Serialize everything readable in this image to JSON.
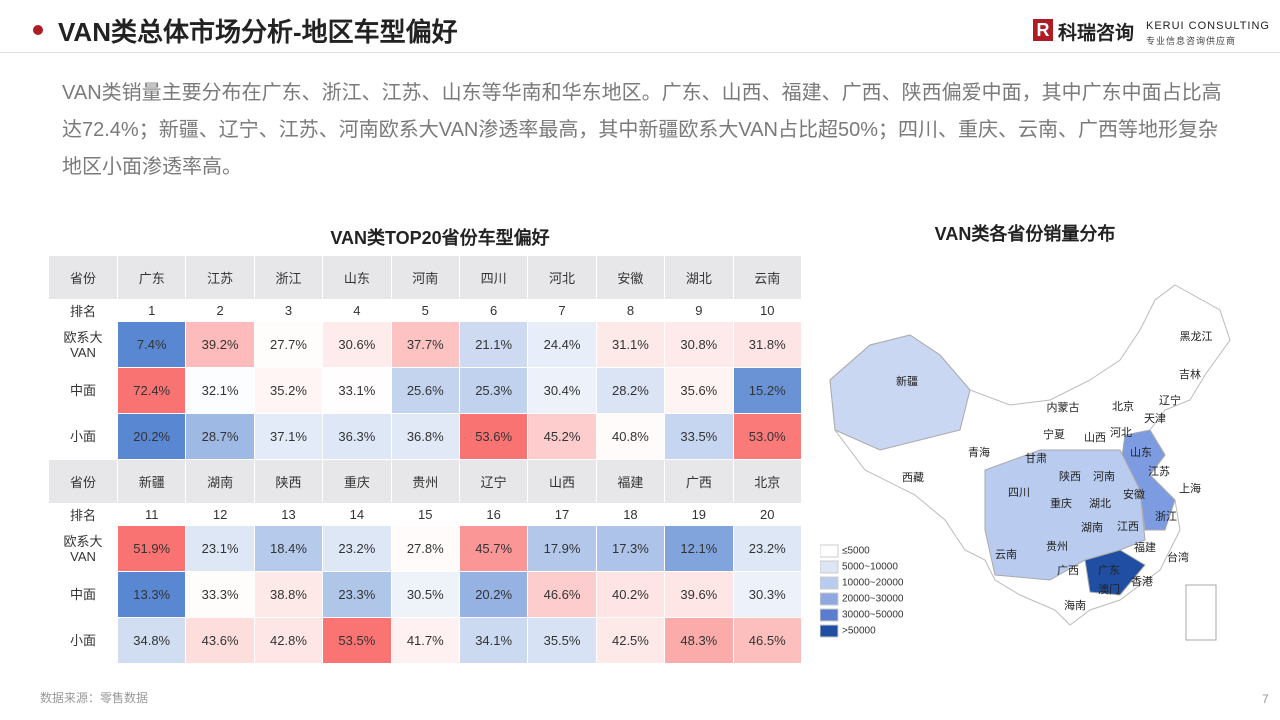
{
  "header": {
    "title": "VAN类总体市场分析-地区车型偏好",
    "logo_cn": "科瑞咨询",
    "logo_en": "KERUI CONSULTING",
    "logo_sub": "专业信息咨询供应商"
  },
  "summary": "VAN类销量主要分布在广东、浙江、江苏、山东等华南和华东地区。广东、山西、福建、广西、陕西偏爱中面，其中广东中面占比高达72.4%；新疆、辽宁、江苏、河南欧系大VAN渗透率最高，其中新疆欧系大VAN占比超50%；四川、重庆、云南、广西等地形复杂地区小面渗透率高。",
  "table": {
    "title": "VAN类TOP20省份车型偏好",
    "blocks": [
      {
        "header_label": "省份",
        "provinces": [
          "广东",
          "江苏",
          "浙江",
          "山东",
          "河南",
          "四川",
          "河北",
          "安徽",
          "湖北",
          "云南"
        ],
        "rank_label": "排名",
        "ranks": [
          1,
          2,
          3,
          4,
          5,
          6,
          7,
          8,
          9,
          10
        ],
        "rows": [
          {
            "label": "欧系大VAN",
            "values": [
              "7.4%",
              "39.2%",
              "27.7%",
              "30.6%",
              "37.7%",
              "21.1%",
              "24.4%",
              "31.1%",
              "30.8%",
              "31.8%"
            ]
          },
          {
            "label": "中面",
            "values": [
              "72.4%",
              "32.1%",
              "35.2%",
              "33.1%",
              "25.6%",
              "25.3%",
              "30.4%",
              "28.2%",
              "35.6%",
              "15.2%"
            ]
          },
          {
            "label": "小面",
            "values": [
              "20.2%",
              "28.7%",
              "37.1%",
              "36.3%",
              "36.8%",
              "53.6%",
              "45.2%",
              "40.8%",
              "33.5%",
              "53.0%"
            ]
          }
        ]
      },
      {
        "header_label": "省份",
        "provinces": [
          "新疆",
          "湖南",
          "陕西",
          "重庆",
          "贵州",
          "辽宁",
          "山西",
          "福建",
          "广西",
          "北京"
        ],
        "rank_label": "排名",
        "ranks": [
          11,
          12,
          13,
          14,
          15,
          16,
          17,
          18,
          19,
          20
        ],
        "rows": [
          {
            "label": "欧系大VAN",
            "values": [
              "51.9%",
              "23.1%",
              "18.4%",
              "23.2%",
              "27.8%",
              "45.7%",
              "17.9%",
              "17.3%",
              "12.1%",
              "23.2%"
            ]
          },
          {
            "label": "中面",
            "values": [
              "13.3%",
              "33.3%",
              "38.8%",
              "23.3%",
              "30.5%",
              "20.2%",
              "46.6%",
              "40.2%",
              "39.6%",
              "30.3%"
            ]
          },
          {
            "label": "小面",
            "values": [
              "34.8%",
              "43.6%",
              "42.8%",
              "53.5%",
              "41.7%",
              "34.1%",
              "35.5%",
              "42.5%",
              "48.3%",
              "46.5%"
            ]
          }
        ]
      }
    ]
  },
  "map": {
    "title": "VAN类各省份销量分布",
    "labels": [
      "黑龙江",
      "吉林",
      "辽宁",
      "内蒙古",
      "北京",
      "天津",
      "新疆",
      "河北",
      "宁夏",
      "山西",
      "山东",
      "青海",
      "甘肃",
      "江苏",
      "西藏",
      "陕西",
      "河南",
      "上海",
      "四川",
      "安徽",
      "湖北",
      "重庆",
      "浙江",
      "湖南",
      "江西",
      "贵州",
      "福建",
      "台湾",
      "云南",
      "广西",
      "广东",
      "香港",
      "澳门",
      "海南"
    ],
    "legend": [
      "≤5000",
      "5000~10000",
      "10000~20000",
      "20000~30000",
      "30000~50000",
      ">50000"
    ]
  },
  "source": "数据来源：零售数据",
  "page_number": "7"
}
